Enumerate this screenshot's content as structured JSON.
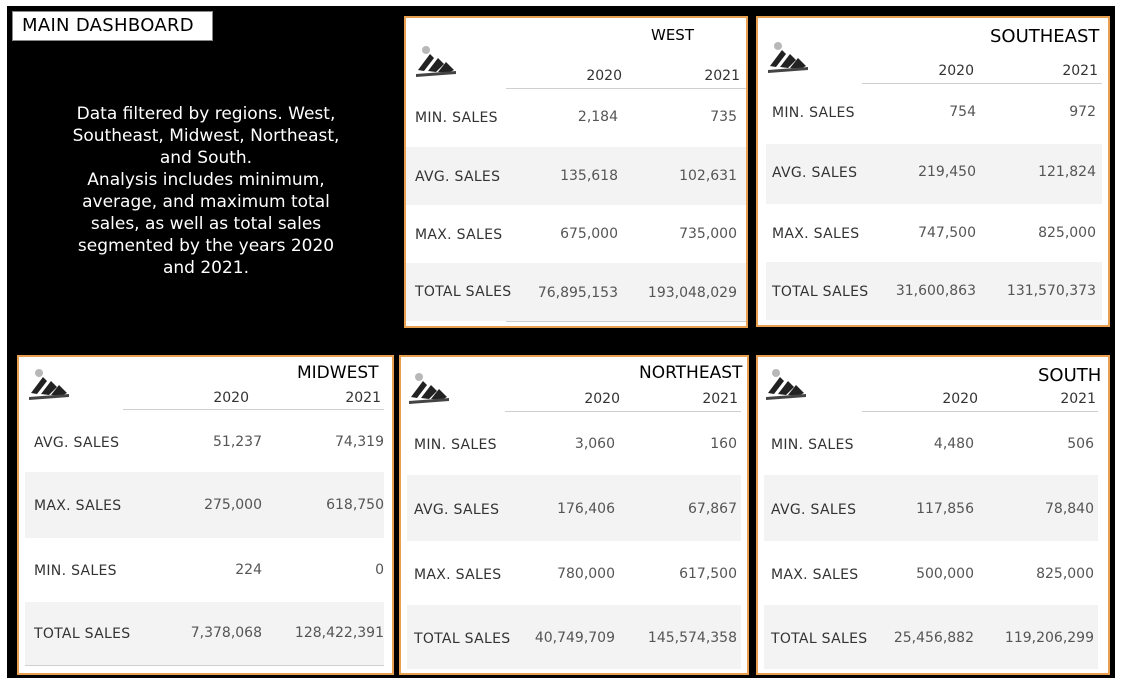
{
  "dashboard_title": "MAIN DASHBOARD",
  "description": [
    "Data filtered by regions. West,",
    "Southeast, Midwest, Northeast,",
    "and South.",
    "Analysis includes minimum,",
    "average, and maximum total",
    "sales, as well as total sales",
    "segmented by the years 2020",
    "and 2021."
  ],
  "logo_icon": "adidas-logo-icon",
  "accent_color": "#e8a050",
  "panels": {
    "west": {
      "region": "WEST",
      "years": [
        "2020",
        "2021"
      ],
      "rows": [
        {
          "label": "MIN. SALES",
          "v2020": "2,184",
          "v2021": "735"
        },
        {
          "label": "AVG. SALES",
          "v2020": "135,618",
          "v2021": "102,631"
        },
        {
          "label": "MAX. SALES",
          "v2020": "675,000",
          "v2021": "735,000"
        },
        {
          "label": "TOTAL SALES",
          "v2020": "76,895,153",
          "v2021": "193,048,029"
        }
      ]
    },
    "southeast": {
      "region": "SOUTHEAST",
      "years": [
        "2020",
        "2021"
      ],
      "rows": [
        {
          "label": "MIN. SALES",
          "v2020": "754",
          "v2021": "972"
        },
        {
          "label": "AVG. SALES",
          "v2020": "219,450",
          "v2021": "121,824"
        },
        {
          "label": "MAX. SALES",
          "v2020": "747,500",
          "v2021": "825,000"
        },
        {
          "label": "TOTAL SALES",
          "v2020": "31,600,863",
          "v2021": "131,570,373"
        }
      ]
    },
    "midwest": {
      "region": "MIDWEST",
      "years": [
        "2020",
        "2021"
      ],
      "rows": [
        {
          "label": "AVG. SALES",
          "v2020": "51,237",
          "v2021": "74,319"
        },
        {
          "label": "MAX. SALES",
          "v2020": "275,000",
          "v2021": "618,750"
        },
        {
          "label": "MIN. SALES",
          "v2020": "224",
          "v2021": "0"
        },
        {
          "label": "TOTAL SALES",
          "v2020": "7,378,068",
          "v2021": "128,422,391"
        }
      ]
    },
    "northeast": {
      "region": "NORTHEAST",
      "years": [
        "2020",
        "2021"
      ],
      "rows": [
        {
          "label": "MIN. SALES",
          "v2020": "3,060",
          "v2021": "160"
        },
        {
          "label": "AVG. SALES",
          "v2020": "176,406",
          "v2021": "67,867"
        },
        {
          "label": "MAX. SALES",
          "v2020": "780,000",
          "v2021": "617,500"
        },
        {
          "label": "TOTAL SALES",
          "v2020": "40,749,709",
          "v2021": "145,574,358"
        }
      ]
    },
    "south": {
      "region": "SOUTH",
      "years": [
        "2020",
        "2021"
      ],
      "rows": [
        {
          "label": "MIN. SALES",
          "v2020": "4,480",
          "v2021": "506"
        },
        {
          "label": "AVG. SALES",
          "v2020": "117,856",
          "v2021": "78,840"
        },
        {
          "label": "MAX. SALES",
          "v2020": "500,000",
          "v2021": "825,000"
        },
        {
          "label": "TOTAL SALES",
          "v2020": "25,456,882",
          "v2021": "119,206,299"
        }
      ]
    }
  }
}
